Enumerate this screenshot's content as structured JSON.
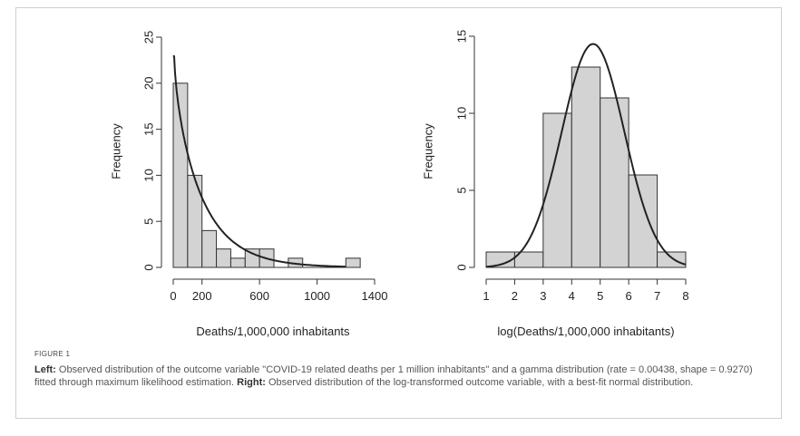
{
  "figure_label": "FIGURE 1",
  "caption": {
    "left_bold": "Left:",
    "left_text": " Observed distribution of the outcome variable \"COVID-19 related deaths per 1 million inhabitants\" and a gamma distribution (rate = 0.00438, shape = 0.9270) fitted through maximum likelihood estimation. ",
    "right_bold": "Right:",
    "right_text": " Observed distribution of the log-transformed outcome variable, with a best-fit normal distribution."
  },
  "colors": {
    "bar_fill": "#d3d3d3",
    "bar_stroke": "#333333",
    "curve": "#222222"
  },
  "chart_data": [
    {
      "type": "bar",
      "subtype": "histogram",
      "xlabel": "Deaths/1,000,000 inhabitants",
      "ylabel": "Frequency",
      "xlim": [
        0,
        1400
      ],
      "ylim": [
        0,
        25
      ],
      "xticks": [
        0,
        200,
        600,
        1000,
        1400
      ],
      "yticks": [
        0,
        5,
        10,
        15,
        20,
        25
      ],
      "bin_width": 100,
      "bins": [
        {
          "x0": 0,
          "x1": 100,
          "count": 20
        },
        {
          "x0": 100,
          "x1": 200,
          "count": 10
        },
        {
          "x0": 200,
          "x1": 300,
          "count": 4
        },
        {
          "x0": 300,
          "x1": 400,
          "count": 2
        },
        {
          "x0": 400,
          "x1": 500,
          "count": 1
        },
        {
          "x0": 500,
          "x1": 600,
          "count": 2
        },
        {
          "x0": 600,
          "x1": 700,
          "count": 2
        },
        {
          "x0": 700,
          "x1": 800,
          "count": 0
        },
        {
          "x0": 800,
          "x1": 900,
          "count": 1
        },
        {
          "x0": 900,
          "x1": 1000,
          "count": 0
        },
        {
          "x0": 1000,
          "x1": 1100,
          "count": 0
        },
        {
          "x0": 1100,
          "x1": 1200,
          "count": 0
        },
        {
          "x0": 1200,
          "x1": 1300,
          "count": 1
        }
      ],
      "fit": {
        "distribution": "gamma",
        "rate": 0.00438,
        "shape": 0.927,
        "x_range": [
          0,
          1200
        ]
      }
    },
    {
      "type": "bar",
      "subtype": "histogram",
      "xlabel": "log(Deaths/1,000,000 inhabitants)",
      "ylabel": "Frequency",
      "xlim": [
        1,
        8
      ],
      "ylim": [
        0,
        15
      ],
      "xticks": [
        1,
        2,
        3,
        4,
        5,
        6,
        7,
        8
      ],
      "yticks": [
        0,
        5,
        10,
        15
      ],
      "bin_width": 1,
      "bins": [
        {
          "x0": 1,
          "x1": 2,
          "count": 1
        },
        {
          "x0": 2,
          "x1": 3,
          "count": 1
        },
        {
          "x0": 3,
          "x1": 4,
          "count": 10
        },
        {
          "x0": 4,
          "x1": 5,
          "count": 13
        },
        {
          "x0": 5,
          "x1": 6,
          "count": 11
        },
        {
          "x0": 6,
          "x1": 7,
          "count": 6
        },
        {
          "x0": 7,
          "x1": 8,
          "count": 1
        }
      ],
      "fit": {
        "distribution": "normal",
        "peak_x": 4.75,
        "peak_y": 14.5,
        "sd": 1.1,
        "x_range": [
          1,
          8
        ]
      }
    }
  ]
}
